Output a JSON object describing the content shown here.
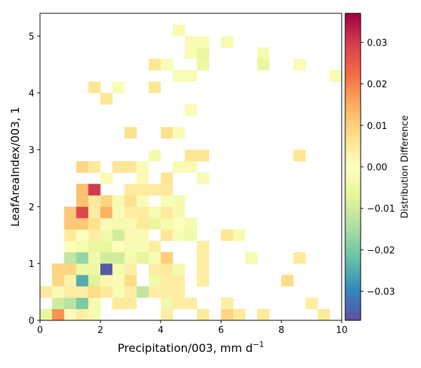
{
  "chart_data": {
    "type": "heatmap",
    "xlabel": "Precipitation/003,  mm d",
    "xlabel_sup": "−1",
    "ylabel": "LeafAreaIndex/003,  1",
    "xlim": [
      0,
      10
    ],
    "ylim": [
      0,
      5.4
    ],
    "x_ticks": [
      "0",
      "2",
      "4",
      "6",
      "8",
      "10"
    ],
    "y_ticks": [
      "0",
      "1",
      "2",
      "3",
      "4",
      "5"
    ],
    "colorbar": {
      "label": "Distribution Difference",
      "range": [
        -0.037,
        0.037
      ],
      "ticks": [
        "−0.03",
        "−0.02",
        "−0.01",
        "0.00",
        "0.01",
        "0.02",
        "0.03"
      ],
      "tick_values": [
        -0.03,
        -0.02,
        -0.01,
        0.0,
        0.01,
        0.02,
        0.03
      ],
      "colormap": "Spectral_r"
    },
    "bin_width": 0.4,
    "bin_height": 0.2,
    "cells": [
      {
        "x": 0.0,
        "y": 0.0,
        "v": -0.006
      },
      {
        "x": 0.4,
        "y": 0.0,
        "v": 0.018
      },
      {
        "x": 0.8,
        "y": 0.0,
        "v": 0.001
      },
      {
        "x": 1.2,
        "y": 0.0,
        "v": 0.004
      },
      {
        "x": 1.6,
        "y": 0.0,
        "v": -0.003
      },
      {
        "x": 4.0,
        "y": 0.0,
        "v": 0.004
      },
      {
        "x": 5.2,
        "y": 0.0,
        "v": 0.005
      },
      {
        "x": 6.0,
        "y": 0.0,
        "v": 0.009
      },
      {
        "x": 6.4,
        "y": 0.0,
        "v": 0.005
      },
      {
        "x": 7.2,
        "y": 0.0,
        "v": 0.005
      },
      {
        "x": 9.2,
        "y": 0.0,
        "v": 0.005
      },
      {
        "x": 0.4,
        "y": 0.2,
        "v": -0.01
      },
      {
        "x": 0.8,
        "y": 0.2,
        "v": -0.013
      },
      {
        "x": 1.2,
        "y": 0.2,
        "v": -0.02
      },
      {
        "x": 1.6,
        "y": 0.2,
        "v": -0.003
      },
      {
        "x": 2.4,
        "y": 0.2,
        "v": 0.005
      },
      {
        "x": 2.8,
        "y": 0.2,
        "v": 0.005
      },
      {
        "x": 4.0,
        "y": 0.2,
        "v": -0.004
      },
      {
        "x": 4.4,
        "y": 0.2,
        "v": 0.004
      },
      {
        "x": 4.8,
        "y": 0.2,
        "v": 0.004
      },
      {
        "x": 6.0,
        "y": 0.2,
        "v": 0.004
      },
      {
        "x": 8.8,
        "y": 0.2,
        "v": 0.004
      },
      {
        "x": 0.0,
        "y": 0.4,
        "v": 0.005
      },
      {
        "x": 0.4,
        "y": 0.4,
        "v": -0.002
      },
      {
        "x": 0.8,
        "y": 0.4,
        "v": 0.004
      },
      {
        "x": 1.2,
        "y": 0.4,
        "v": 0.004
      },
      {
        "x": 1.6,
        "y": 0.4,
        "v": 0.008
      },
      {
        "x": 2.0,
        "y": 0.4,
        "v": 0.005
      },
      {
        "x": 2.4,
        "y": 0.4,
        "v": -0.002
      },
      {
        "x": 2.8,
        "y": 0.4,
        "v": 0.004
      },
      {
        "x": 3.2,
        "y": 0.4,
        "v": -0.012
      },
      {
        "x": 3.6,
        "y": 0.4,
        "v": 0.004
      },
      {
        "x": 4.0,
        "y": 0.4,
        "v": 0.004
      },
      {
        "x": 4.4,
        "y": 0.4,
        "v": 0.004
      },
      {
        "x": 0.4,
        "y": 0.6,
        "v": 0.009
      },
      {
        "x": 0.8,
        "y": 0.6,
        "v": 0.003
      },
      {
        "x": 1.2,
        "y": 0.6,
        "v": -0.025
      },
      {
        "x": 1.6,
        "y": 0.6,
        "v": -0.008
      },
      {
        "x": 2.0,
        "y": 0.6,
        "v": 0.002
      },
      {
        "x": 2.4,
        "y": 0.6,
        "v": -0.002
      },
      {
        "x": 2.8,
        "y": 0.6,
        "v": 0.008
      },
      {
        "x": 3.6,
        "y": 0.6,
        "v": -0.004
      },
      {
        "x": 4.0,
        "y": 0.6,
        "v": 0.004
      },
      {
        "x": 4.4,
        "y": 0.6,
        "v": 0.004
      },
      {
        "x": 5.2,
        "y": 0.6,
        "v": 0.004
      },
      {
        "x": 8.0,
        "y": 0.6,
        "v": 0.008
      },
      {
        "x": 0.4,
        "y": 0.8,
        "v": 0.009
      },
      {
        "x": 0.8,
        "y": 0.8,
        "v": 0.009
      },
      {
        "x": 1.2,
        "y": 0.8,
        "v": -0.005
      },
      {
        "x": 1.6,
        "y": 0.8,
        "v": -0.005
      },
      {
        "x": 2.0,
        "y": 0.8,
        "v": -0.036
      },
      {
        "x": 2.4,
        "y": 0.8,
        "v": -0.003
      },
      {
        "x": 2.8,
        "y": 0.8,
        "v": 0.004
      },
      {
        "x": 3.6,
        "y": 0.8,
        "v": 0.004
      },
      {
        "x": 4.0,
        "y": 0.8,
        "v": 0.005
      },
      {
        "x": 4.4,
        "y": 0.8,
        "v": -0.003
      },
      {
        "x": 5.2,
        "y": 0.8,
        "v": 0.004
      },
      {
        "x": 0.8,
        "y": 1.0,
        "v": -0.012
      },
      {
        "x": 1.2,
        "y": 1.0,
        "v": -0.017
      },
      {
        "x": 1.6,
        "y": 1.0,
        "v": -0.004
      },
      {
        "x": 2.0,
        "y": 1.0,
        "v": -0.01
      },
      {
        "x": 2.4,
        "y": 1.0,
        "v": -0.01
      },
      {
        "x": 2.8,
        "y": 1.0,
        "v": -0.003
      },
      {
        "x": 3.2,
        "y": 1.0,
        "v": -0.007
      },
      {
        "x": 3.6,
        "y": 1.0,
        "v": -0.002
      },
      {
        "x": 4.0,
        "y": 1.0,
        "v": 0.01
      },
      {
        "x": 5.2,
        "y": 1.0,
        "v": 0.004
      },
      {
        "x": 6.8,
        "y": 1.0,
        "v": -0.003
      },
      {
        "x": 8.4,
        "y": 1.0,
        "v": 0.005
      },
      {
        "x": 0.8,
        "y": 1.2,
        "v": -0.001
      },
      {
        "x": 1.2,
        "y": 1.2,
        "v": -0.003
      },
      {
        "x": 1.6,
        "y": 1.2,
        "v": -0.006
      },
      {
        "x": 2.0,
        "y": 1.2,
        "v": -0.006
      },
      {
        "x": 2.4,
        "y": 1.2,
        "v": -0.001
      },
      {
        "x": 2.8,
        "y": 1.2,
        "v": -0.003
      },
      {
        "x": 3.2,
        "y": 1.2,
        "v": -0.002
      },
      {
        "x": 3.6,
        "y": 1.2,
        "v": 0.004
      },
      {
        "x": 5.2,
        "y": 1.2,
        "v": 0.004
      },
      {
        "x": 0.8,
        "y": 1.4,
        "v": 0.005
      },
      {
        "x": 1.2,
        "y": 1.4,
        "v": -0.001
      },
      {
        "x": 1.6,
        "y": 1.4,
        "v": 0.004
      },
      {
        "x": 2.0,
        "y": 1.4,
        "v": -0.004
      },
      {
        "x": 2.4,
        "y": 1.4,
        "v": -0.01
      },
      {
        "x": 2.8,
        "y": 1.4,
        "v": 0.002
      },
      {
        "x": 3.2,
        "y": 1.4,
        "v": -0.002
      },
      {
        "x": 4.0,
        "y": 1.4,
        "v": 0.006
      },
      {
        "x": 4.4,
        "y": 1.4,
        "v": -0.002
      },
      {
        "x": 4.8,
        "y": 1.4,
        "v": -0.004
      },
      {
        "x": 6.0,
        "y": 1.4,
        "v": 0.006
      },
      {
        "x": 6.4,
        "y": 1.4,
        "v": -0.003
      },
      {
        "x": 0.8,
        "y": 1.6,
        "v": 0.011
      },
      {
        "x": 1.2,
        "y": 1.6,
        "v": 0.011
      },
      {
        "x": 1.6,
        "y": 1.6,
        "v": 0.007
      },
      {
        "x": 2.0,
        "y": 1.6,
        "v": -0.002
      },
      {
        "x": 2.4,
        "y": 1.6,
        "v": -0.003
      },
      {
        "x": 2.8,
        "y": 1.6,
        "v": -0.003
      },
      {
        "x": 3.2,
        "y": 1.6,
        "v": 0.005
      },
      {
        "x": 3.6,
        "y": 1.6,
        "v": -0.006
      },
      {
        "x": 4.0,
        "y": 1.6,
        "v": -0.003
      },
      {
        "x": 4.4,
        "y": 1.6,
        "v": -0.001
      },
      {
        "x": 4.8,
        "y": 1.6,
        "v": -0.003
      },
      {
        "x": 0.8,
        "y": 1.8,
        "v": 0.011
      },
      {
        "x": 1.2,
        "y": 1.8,
        "v": 0.028
      },
      {
        "x": 1.6,
        "y": 1.8,
        "v": 0.004
      },
      {
        "x": 2.0,
        "y": 1.8,
        "v": 0.014
      },
      {
        "x": 2.4,
        "y": 1.8,
        "v": -0.002
      },
      {
        "x": 2.8,
        "y": 1.8,
        "v": 0.004
      },
      {
        "x": 3.2,
        "y": 1.8,
        "v": 0.005
      },
      {
        "x": 3.6,
        "y": 1.8,
        "v": -0.003
      },
      {
        "x": 4.0,
        "y": 1.8,
        "v": 0.005
      },
      {
        "x": 4.4,
        "y": 1.8,
        "v": -0.003
      },
      {
        "x": 1.2,
        "y": 2.0,
        "v": 0.012
      },
      {
        "x": 1.6,
        "y": 2.0,
        "v": 0.005
      },
      {
        "x": 2.0,
        "y": 2.0,
        "v": 0.009
      },
      {
        "x": 2.4,
        "y": 2.0,
        "v": -0.003
      },
      {
        "x": 2.8,
        "y": 2.0,
        "v": 0.007
      },
      {
        "x": 3.2,
        "y": 2.0,
        "v": -0.002
      },
      {
        "x": 4.0,
        "y": 2.0,
        "v": -0.002
      },
      {
        "x": 4.4,
        "y": 2.0,
        "v": -0.003
      },
      {
        "x": 1.2,
        "y": 2.2,
        "v": 0.012
      },
      {
        "x": 1.6,
        "y": 2.2,
        "v": 0.03
      },
      {
        "x": 2.8,
        "y": 2.2,
        "v": 0.005
      },
      {
        "x": 3.2,
        "y": 2.2,
        "v": 0.005
      },
      {
        "x": 3.6,
        "y": 2.2,
        "v": 0.005
      },
      {
        "x": 4.0,
        "y": 2.2,
        "v": 0.005
      },
      {
        "x": 2.0,
        "y": 2.4,
        "v": -0.002
      },
      {
        "x": 3.2,
        "y": 2.4,
        "v": -0.002
      },
      {
        "x": 4.0,
        "y": 2.4,
        "v": 0.006
      },
      {
        "x": 5.2,
        "y": 2.4,
        "v": -0.002
      },
      {
        "x": 1.2,
        "y": 2.6,
        "v": 0.009
      },
      {
        "x": 1.6,
        "y": 2.6,
        "v": 0.005
      },
      {
        "x": 2.4,
        "y": 2.6,
        "v": 0.006
      },
      {
        "x": 2.8,
        "y": 2.6,
        "v": 0.006
      },
      {
        "x": 3.2,
        "y": 2.6,
        "v": -0.002
      },
      {
        "x": 4.4,
        "y": 2.6,
        "v": -0.002
      },
      {
        "x": 4.8,
        "y": 2.6,
        "v": -0.002
      },
      {
        "x": 3.6,
        "y": 2.8,
        "v": -0.003
      },
      {
        "x": 4.8,
        "y": 2.8,
        "v": 0.006
      },
      {
        "x": 5.2,
        "y": 2.8,
        "v": 0.006
      },
      {
        "x": 8.4,
        "y": 2.8,
        "v": 0.006
      },
      {
        "x": 2.8,
        "y": 3.2,
        "v": 0.007
      },
      {
        "x": 4.0,
        "y": 3.2,
        "v": 0.007
      },
      {
        "x": 4.4,
        "y": 3.2,
        "v": -0.002
      },
      {
        "x": 4.8,
        "y": 3.6,
        "v": -0.002
      },
      {
        "x": 2.0,
        "y": 3.8,
        "v": 0.006
      },
      {
        "x": 1.6,
        "y": 4.0,
        "v": 0.006
      },
      {
        "x": 2.4,
        "y": 4.0,
        "v": -0.002
      },
      {
        "x": 3.6,
        "y": 4.0,
        "v": 0.006
      },
      {
        "x": 4.4,
        "y": 4.2,
        "v": -0.002
      },
      {
        "x": 4.8,
        "y": 4.2,
        "v": -0.002
      },
      {
        "x": 9.6,
        "y": 4.2,
        "v": -0.002
      },
      {
        "x": 3.6,
        "y": 4.4,
        "v": 0.006
      },
      {
        "x": 4.0,
        "y": 4.4,
        "v": -0.002
      },
      {
        "x": 5.2,
        "y": 4.4,
        "v": -0.005
      },
      {
        "x": 7.2,
        "y": 4.4,
        "v": -0.006
      },
      {
        "x": 8.4,
        "y": 4.4,
        "v": -0.002
      },
      {
        "x": 4.8,
        "y": 4.6,
        "v": -0.002
      },
      {
        "x": 5.2,
        "y": 4.6,
        "v": -0.006
      },
      {
        "x": 7.2,
        "y": 4.6,
        "v": -0.003
      },
      {
        "x": 4.8,
        "y": 4.8,
        "v": -0.002
      },
      {
        "x": 5.2,
        "y": 4.8,
        "v": -0.002
      },
      {
        "x": 6.0,
        "y": 4.8,
        "v": -0.003
      },
      {
        "x": 4.4,
        "y": 5.0,
        "v": -0.003
      }
    ]
  }
}
